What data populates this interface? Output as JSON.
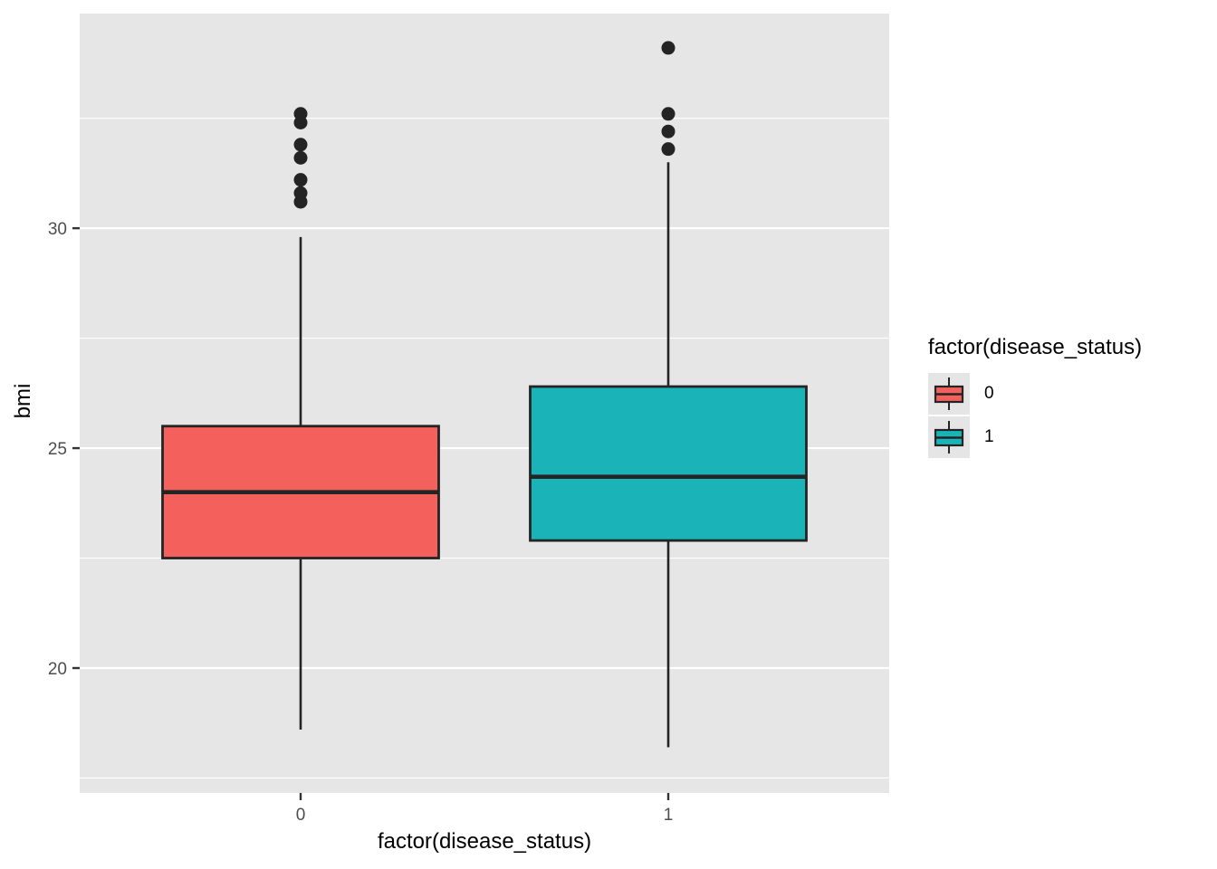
{
  "figure": {
    "background": "#FFFFFF",
    "panel_bg": "#E6E6E6",
    "grid_color": "#FFFFFF",
    "box_stroke": "#242424",
    "tick_label_color": "#4D4D4D",
    "tick_mark_color": "#333333",
    "title_color": "#000000"
  },
  "axes": {
    "x_title": "factor(disease_status)",
    "y_title": "bmi",
    "x_tick_labels": [
      "0",
      "1"
    ],
    "y_tick_labels": [
      "20",
      "25",
      "30"
    ]
  },
  "legend": {
    "title": "factor(disease_status)",
    "position": "right",
    "entries": [
      {
        "label": "0",
        "color": "#F4615C"
      },
      {
        "label": "1",
        "color": "#1AB4B8"
      }
    ]
  },
  "chart_data": {
    "type": "boxplot",
    "title": "",
    "xlabel": "factor(disease_status)",
    "ylabel": "bmi",
    "categories": [
      "0",
      "1"
    ],
    "y_ticks": [
      20,
      25,
      30
    ],
    "y_minor_ticks": [
      17.5,
      22.5,
      27.5,
      32.5
    ],
    "ylim": [
      17.16,
      34.88
    ],
    "grid": true,
    "legend_position": "right",
    "series": [
      {
        "name": "0",
        "fill": "#F4615C",
        "whisker_low": 18.6,
        "q1": 22.5,
        "median": 24.0,
        "q3": 25.5,
        "whisker_high": 29.8,
        "outliers": [
          30.6,
          30.8,
          31.1,
          31.6,
          31.9,
          32.4,
          32.6
        ]
      },
      {
        "name": "1",
        "fill": "#1AB4B8",
        "whisker_low": 18.2,
        "q1": 22.9,
        "median": 24.35,
        "q3": 26.4,
        "whisker_high": 31.5,
        "outliers": [
          31.8,
          32.2,
          32.6,
          34.1
        ]
      }
    ]
  }
}
